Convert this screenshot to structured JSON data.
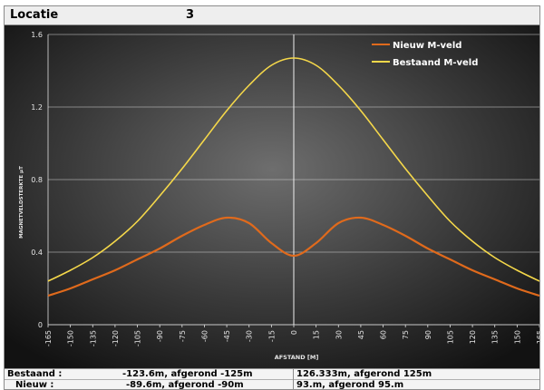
{
  "header": {
    "label": "Locatie",
    "value": "3"
  },
  "chart_data": {
    "type": "line",
    "title": "",
    "xlabel": "AFSTAND [M]",
    "ylabel": "MAGNETVELDSTERKTE µT",
    "xlim": [
      -165,
      165
    ],
    "ylim": [
      0,
      1.6
    ],
    "xticks": [
      "-165",
      "-150",
      "-135",
      "-120",
      "-105",
      "-90",
      "-75",
      "-60",
      "-45",
      "-30",
      "-15",
      "0",
      "15",
      "30",
      "45",
      "60",
      "75",
      "90",
      "105",
      "120",
      "135",
      "150",
      "165"
    ],
    "yticks": [
      "0",
      "0.4",
      "0.8",
      "1.2",
      "1.6"
    ],
    "grid": true,
    "legend_position": "top-right",
    "background": "radial dark gray",
    "x": [
      -165,
      -150,
      -135,
      -120,
      -105,
      -90,
      -75,
      -60,
      -45,
      -30,
      -15,
      0,
      15,
      30,
      45,
      60,
      75,
      90,
      105,
      120,
      135,
      150,
      165
    ],
    "series": [
      {
        "name": "Nieuw M-veld",
        "color": "#e06a1c",
        "values": [
          0.16,
          0.2,
          0.25,
          0.3,
          0.36,
          0.42,
          0.49,
          0.55,
          0.59,
          0.56,
          0.45,
          0.38,
          0.45,
          0.56,
          0.59,
          0.55,
          0.49,
          0.42,
          0.36,
          0.3,
          0.25,
          0.2,
          0.16
        ]
      },
      {
        "name": "Bestaand M-veld",
        "color": "#f5d84a",
        "values": [
          0.24,
          0.3,
          0.37,
          0.46,
          0.57,
          0.71,
          0.86,
          1.02,
          1.18,
          1.32,
          1.43,
          1.47,
          1.43,
          1.32,
          1.18,
          1.02,
          0.86,
          0.71,
          0.57,
          0.46,
          0.37,
          0.3,
          0.24
        ]
      }
    ]
  },
  "summary": {
    "rows": [
      {
        "label": "Bestaand :",
        "left": "-123.6m, afgerond -125m",
        "right": "126.333m, afgerond 125m"
      },
      {
        "label": "Nieuw :",
        "left": "-89.6m, afgerond -90m",
        "right": "93.m, afgerond 95.m"
      }
    ]
  }
}
